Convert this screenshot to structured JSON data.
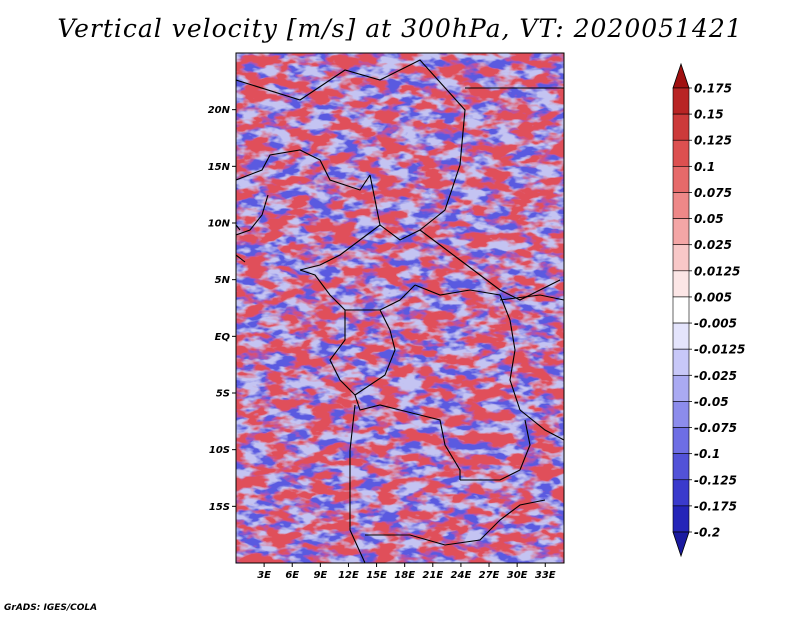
{
  "title": "Vertical velocity [m/s] at 300hPa, VT: 2020051421",
  "map": {
    "lon_range": [
      0,
      35
    ],
    "lat_range": [
      -20,
      25
    ],
    "lat_ticks": [
      {
        "value": 20,
        "label": "20N"
      },
      {
        "value": 15,
        "label": "15N"
      },
      {
        "value": 10,
        "label": "10N"
      },
      {
        "value": 5,
        "label": "5N"
      },
      {
        "value": 0,
        "label": "EQ"
      },
      {
        "value": -5,
        "label": "5S"
      },
      {
        "value": -10,
        "label": "10S"
      },
      {
        "value": -15,
        "label": "15S"
      }
    ],
    "lon_ticks": [
      {
        "value": 3,
        "label": "3E"
      },
      {
        "value": 6,
        "label": "6E"
      },
      {
        "value": 9,
        "label": "9E"
      },
      {
        "value": 12,
        "label": "12E"
      },
      {
        "value": 15,
        "label": "15E"
      },
      {
        "value": 18,
        "label": "18E"
      },
      {
        "value": 21,
        "label": "21E"
      },
      {
        "value": 24,
        "label": "24E"
      },
      {
        "value": 27,
        "label": "27E"
      },
      {
        "value": 30,
        "label": "30E"
      },
      {
        "value": 33,
        "label": "33E"
      }
    ]
  },
  "colorbar": {
    "levels": [
      "0.175",
      "0.15",
      "0.125",
      "0.1",
      "0.075",
      "0.05",
      "0.025",
      "0.0125",
      "0.005",
      "-0.005",
      "-0.0125",
      "-0.025",
      "-0.05",
      "-0.075",
      "-0.1",
      "-0.125",
      "-0.175",
      "-0.2"
    ],
    "colors": [
      "#a01010",
      "#b82424",
      "#cc3a3a",
      "#dc5050",
      "#e66a6a",
      "#ee8888",
      "#f4a6a6",
      "#f8c8c8",
      "#fce6e6",
      "#ffffff",
      "#e4e4fc",
      "#c8c8f8",
      "#aaaaf2",
      "#8c8cec",
      "#6e6ee4",
      "#5252d8",
      "#3a3acc",
      "#2424b8",
      "#1a1aa0"
    ]
  },
  "credit": "GrADS: IGES/COLA"
}
